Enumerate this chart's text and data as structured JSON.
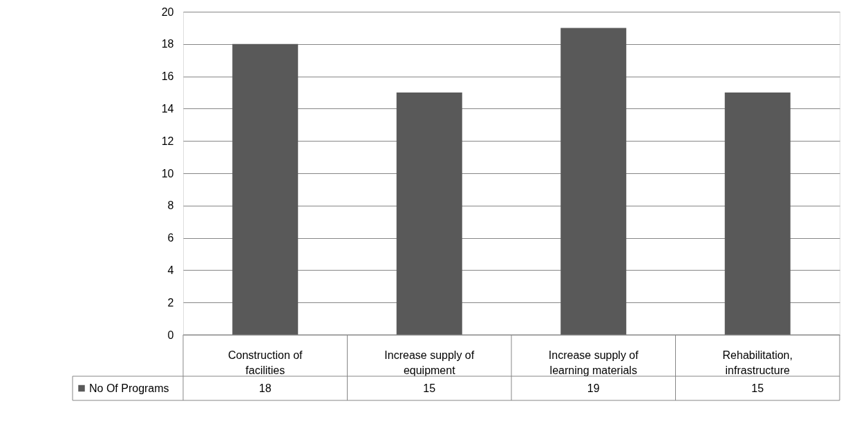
{
  "chart_data": {
    "type": "bar",
    "categories": [
      "Construction of facilities",
      "Increase supply of equipment",
      "Increase supply of learning materials",
      "Rehabilitation, infrastructure"
    ],
    "series": [
      {
        "name": "No Of Programs",
        "color": "#595959",
        "values": [
          18,
          15,
          19,
          15
        ]
      }
    ],
    "ylim": [
      0,
      20
    ],
    "yticks": [
      0,
      2,
      4,
      6,
      8,
      10,
      12,
      14,
      16,
      18,
      20
    ],
    "grid": "y",
    "legend": "bottom left",
    "data_labels": true
  }
}
